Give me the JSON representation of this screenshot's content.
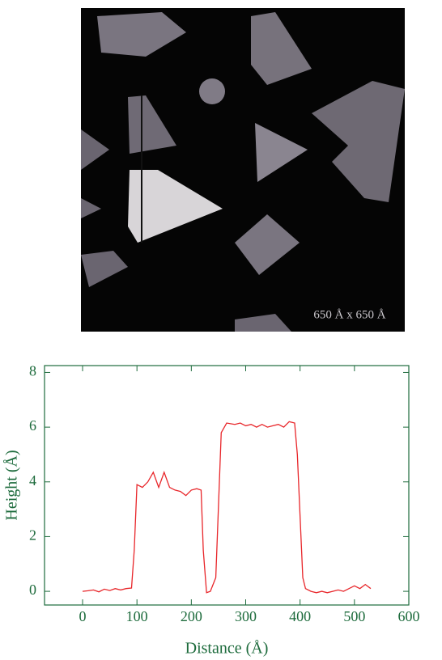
{
  "image": {
    "scale_label": "650 Å x 650 Å"
  },
  "chart_data": {
    "type": "line",
    "xlabel": "Distance (Å)",
    "ylabel": "Height (Å)",
    "xlim": [
      -70,
      600
    ],
    "ylim": [
      -0.5,
      8.25
    ],
    "xticks": [
      0,
      100,
      200,
      300,
      400,
      500,
      600
    ],
    "yticks": [
      0,
      2,
      4,
      6,
      8
    ],
    "axis_color": "#1d6b3c",
    "series": [
      {
        "color": "#e8262a",
        "x": [
          0,
          10,
          20,
          30,
          40,
          50,
          60,
          70,
          80,
          90,
          95,
          100,
          110,
          120,
          130,
          140,
          150,
          160,
          170,
          180,
          190,
          200,
          210,
          218,
          222,
          228,
          235,
          245,
          255,
          265,
          280,
          290,
          300,
          310,
          320,
          330,
          340,
          350,
          360,
          370,
          380,
          390,
          395,
          405,
          410,
          420,
          430,
          440,
          450,
          460,
          470,
          480,
          490,
          500,
          510,
          520,
          530
        ],
        "values": [
          0,
          0.02,
          0.05,
          -0.02,
          0.08,
          0.03,
          0.1,
          0.05,
          0.1,
          0.12,
          1.5,
          3.9,
          3.8,
          4.0,
          4.35,
          3.8,
          4.35,
          3.8,
          3.7,
          3.65,
          3.5,
          3.7,
          3.75,
          3.7,
          1.5,
          -0.05,
          0.0,
          0.5,
          5.8,
          6.15,
          6.1,
          6.15,
          6.05,
          6.1,
          6.0,
          6.1,
          6.0,
          6.05,
          6.1,
          6.0,
          6.2,
          6.15,
          5.0,
          0.5,
          0.1,
          0.0,
          -0.05,
          0.0,
          -0.05,
          0.0,
          0.05,
          0.0,
          0.1,
          0.2,
          0.1,
          0.25,
          0.1
        ]
      }
    ]
  }
}
